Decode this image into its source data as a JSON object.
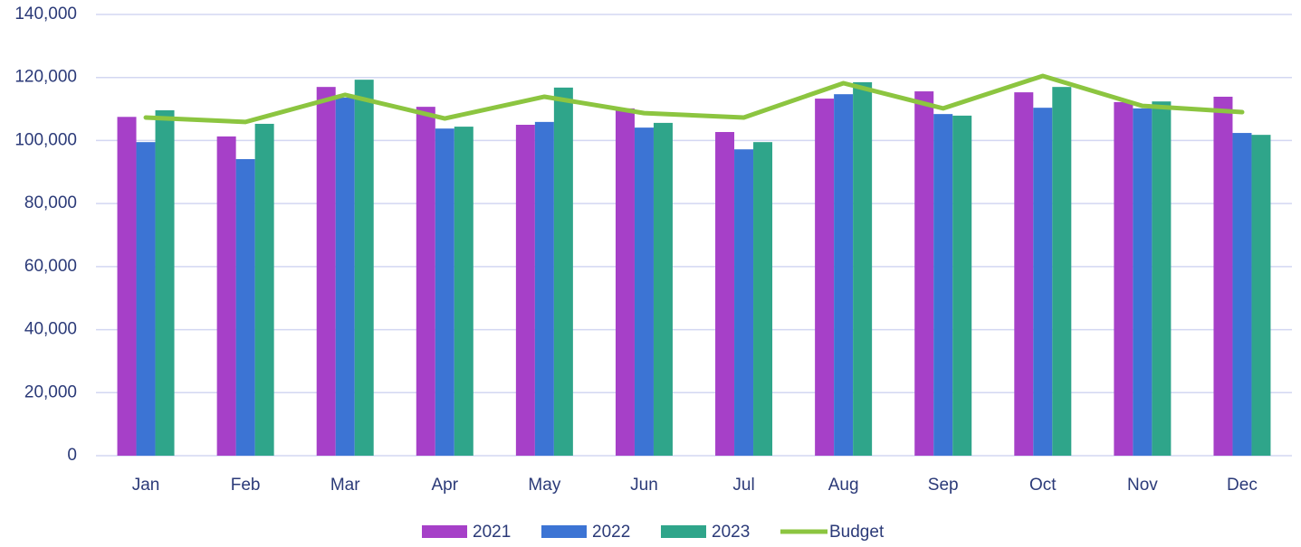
{
  "chart_data": {
    "type": "bar",
    "categories": [
      "Jan",
      "Feb",
      "Mar",
      "Apr",
      "May",
      "Jun",
      "Jul",
      "Aug",
      "Sep",
      "Oct",
      "Nov",
      "Dec"
    ],
    "series": [
      {
        "name": "2021",
        "color": "#a640c8",
        "values": [
          107500,
          101300,
          117000,
          110700,
          105000,
          110200,
          102700,
          113300,
          115600,
          115300,
          112200,
          113900
        ]
      },
      {
        "name": "2022",
        "color": "#3c74d4",
        "values": [
          99500,
          94100,
          113600,
          103800,
          105900,
          104100,
          97200,
          114700,
          108400,
          110400,
          110200,
          102400
        ]
      },
      {
        "name": "2023",
        "color": "#2fa58a",
        "values": [
          109600,
          105300,
          119300,
          104400,
          116800,
          105600,
          99500,
          118500,
          107900,
          117000,
          112400,
          101800
        ]
      },
      {
        "name": "Budget",
        "type": "line",
        "color": "#8cc540",
        "values": [
          107300,
          105900,
          114500,
          107000,
          113900,
          108700,
          107300,
          118200,
          110200,
          120500,
          111000,
          109000
        ]
      }
    ],
    "ylim": [
      0,
      140000
    ],
    "yticks": [
      0,
      {
        "value": 20000,
        "label": "20,000"
      },
      {
        "value": 40000,
        "label": "40,000"
      },
      {
        "value": 60000,
        "label": "60,000"
      },
      {
        "value": 80000,
        "label": "80,000"
      },
      {
        "value": 100000,
        "label": "100,000"
      },
      {
        "value": 120000,
        "label": "120,000"
      },
      {
        "value": 140000,
        "label": "140,000"
      }
    ],
    "grid": true,
    "legend": "bottom"
  }
}
